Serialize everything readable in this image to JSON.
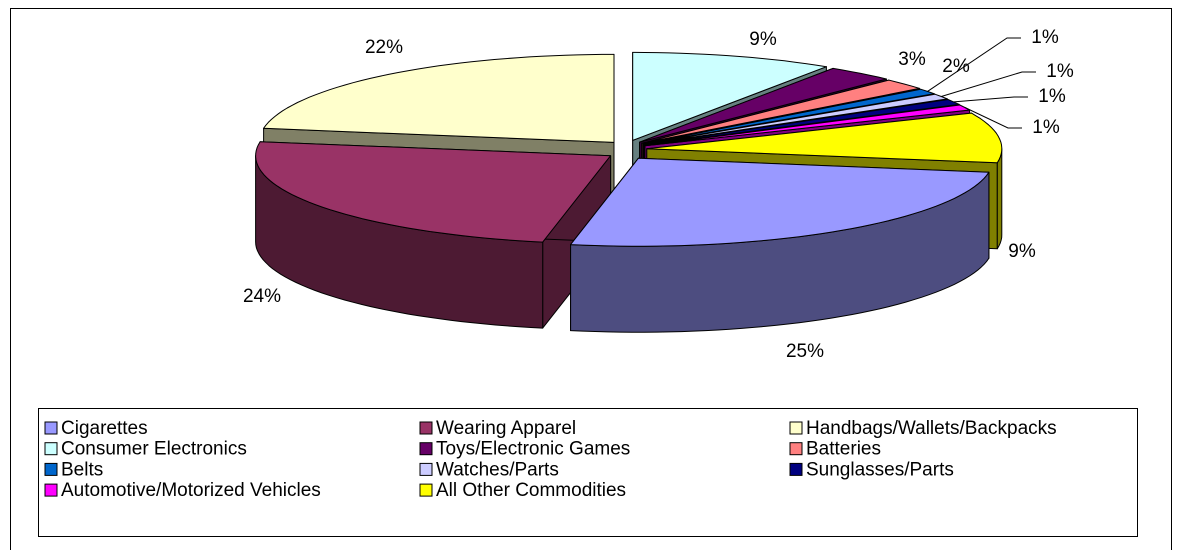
{
  "chart_data": {
    "type": "pie",
    "categories": [
      "Cigarettes",
      "Wearing Apparel",
      "Handbags/Wallets/Backpacks",
      "Consumer Electronics",
      "Toys/Electronic Games",
      "Batteries",
      "Belts",
      "Watches/Parts",
      "Sunglasses/Parts",
      "Automotive/Motorized Vehicles",
      "All Other Commodities"
    ],
    "values": [
      25,
      24,
      22,
      9,
      3,
      2,
      1,
      1,
      1,
      1,
      9
    ],
    "value_labels": [
      "25%",
      "24%",
      "22%",
      "9%",
      "3%",
      "2%",
      "1%",
      "1%",
      "1%",
      "1%",
      "9%"
    ],
    "colors": [
      "#9999ff",
      "#993366",
      "#ffffcc",
      "#ccffff",
      "#660066",
      "#ff8080",
      "#0066cc",
      "#ccccff",
      "#000080",
      "#ff00ff",
      "#ffff00"
    ],
    "three_d": true,
    "exploded": true,
    "legend": "bottom"
  }
}
